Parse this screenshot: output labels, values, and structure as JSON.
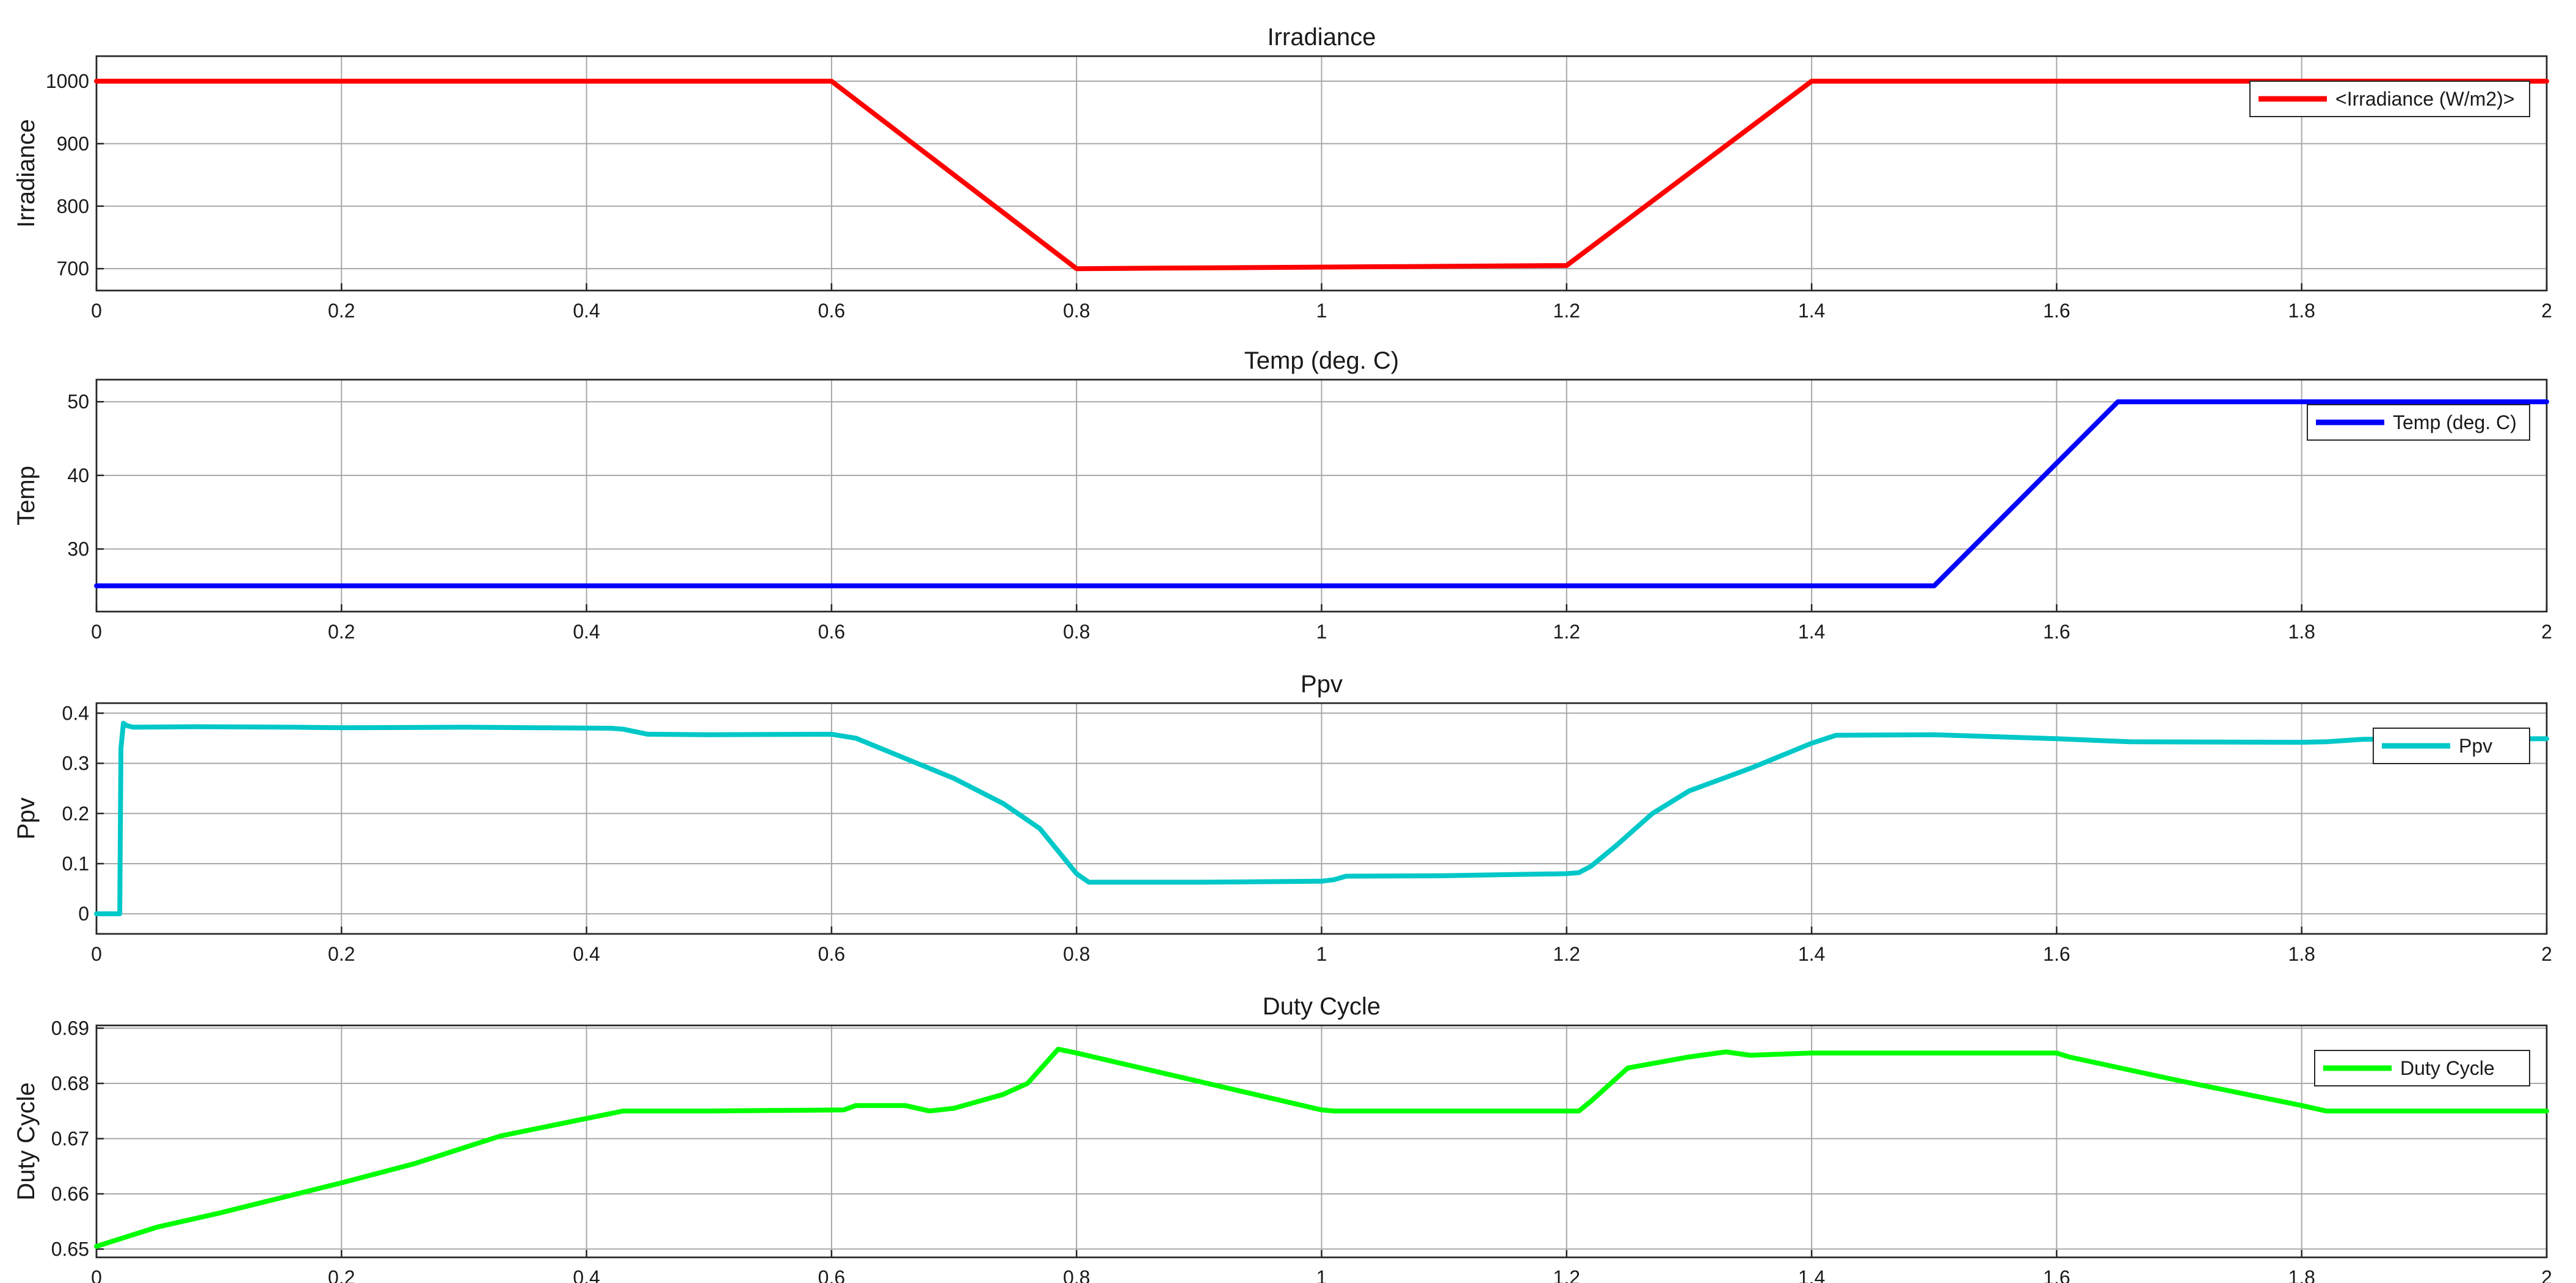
{
  "chart_data": [
    {
      "type": "line",
      "title": "Irradiance",
      "xlabel": "",
      "ylabel": "Irradiance",
      "xlim": [
        0,
        2
      ],
      "ylim": [
        665,
        1040
      ],
      "xticks": [
        0,
        0.2,
        0.4,
        0.6,
        0.8,
        1,
        1.2,
        1.4,
        1.6,
        1.8,
        2
      ],
      "xtick_labels": [
        "0",
        "0.2",
        "0.4",
        "0.6",
        "0.8",
        "1",
        "1.2",
        "1.4",
        "1.6",
        "1.8",
        "2"
      ],
      "yticks": [
        700,
        800,
        900,
        1000
      ],
      "ytick_labels": [
        "700",
        "800",
        "900",
        "1000"
      ],
      "grid": true,
      "legend_position": "top-right",
      "series": [
        {
          "name": "<Irradiance (W/m2)>",
          "color": "#ff0000",
          "x": [
            0,
            0.6,
            0.8,
            1.2,
            1.4,
            2
          ],
          "y": [
            1000,
            1000,
            700,
            705,
            1000,
            1000
          ]
        }
      ]
    },
    {
      "type": "line",
      "title": "Temp (deg. C)",
      "xlabel": "",
      "ylabel": "Temp",
      "xlim": [
        0,
        2
      ],
      "ylim": [
        21.5,
        53
      ],
      "xticks": [
        0,
        0.2,
        0.4,
        0.6,
        0.8,
        1,
        1.2,
        1.4,
        1.6,
        1.8,
        2
      ],
      "xtick_labels": [
        "0",
        "0.2",
        "0.4",
        "0.6",
        "0.8",
        "1",
        "1.2",
        "1.4",
        "1.6",
        "1.8",
        "2"
      ],
      "yticks": [
        30,
        40,
        50
      ],
      "ytick_labels": [
        "30",
        "40",
        "50"
      ],
      "grid": true,
      "legend_position": "top-right",
      "series": [
        {
          "name": "Temp (deg. C)",
          "color": "#0000ff",
          "x": [
            0,
            1.5,
            1.65,
            2
          ],
          "y": [
            25,
            25,
            50,
            50
          ]
        }
      ]
    },
    {
      "type": "line",
      "title": "Ppv",
      "xlabel": "",
      "ylabel": "Ppv",
      "xlim": [
        0,
        2
      ],
      "ylim": [
        -0.04,
        0.42
      ],
      "xticks": [
        0,
        0.2,
        0.4,
        0.6,
        0.8,
        1,
        1.2,
        1.4,
        1.6,
        1.8,
        2
      ],
      "xtick_labels": [
        "0",
        "0.2",
        "0.4",
        "0.6",
        "0.8",
        "1",
        "1.2",
        "1.4",
        "1.6",
        "1.8",
        "2"
      ],
      "yticks": [
        0,
        0.1,
        0.2,
        0.3,
        0.4
      ],
      "ytick_labels": [
        "0",
        "0.1",
        "0.2",
        "0.3",
        "0.4"
      ],
      "grid": true,
      "legend_position": "top-right",
      "series": [
        {
          "name": "Ppv",
          "color": "#00c8c8",
          "x": [
            0,
            0.019,
            0.02,
            0.022,
            0.025,
            0.03,
            0.08,
            0.16,
            0.2,
            0.3,
            0.42,
            0.43,
            0.45,
            0.5,
            0.6,
            0.62,
            0.66,
            0.7,
            0.74,
            0.77,
            0.79,
            0.8,
            0.81,
            0.9,
            1.0,
            1.01,
            1.02,
            1.1,
            1.2,
            1.21,
            1.22,
            1.24,
            1.27,
            1.3,
            1.35,
            1.38,
            1.4,
            1.42,
            1.5,
            1.6,
            1.66,
            1.8,
            1.82,
            1.85,
            2
          ],
          "y": [
            0,
            0,
            0.33,
            0.38,
            0.375,
            0.372,
            0.373,
            0.372,
            0.371,
            0.372,
            0.37,
            0.368,
            0.358,
            0.357,
            0.358,
            0.35,
            0.31,
            0.27,
            0.22,
            0.17,
            0.11,
            0.08,
            0.063,
            0.063,
            0.065,
            0.068,
            0.075,
            0.076,
            0.08,
            0.082,
            0.095,
            0.135,
            0.2,
            0.245,
            0.29,
            0.32,
            0.34,
            0.356,
            0.357,
            0.349,
            0.343,
            0.342,
            0.343,
            0.348,
            0.349
          ]
        }
      ]
    },
    {
      "type": "line",
      "title": "Duty Cycle",
      "xlabel": "",
      "ylabel": "Duty Cycle",
      "xlim": [
        0,
        2
      ],
      "ylim": [
        0.6485,
        0.6905
      ],
      "xticks": [
        0,
        0.2,
        0.4,
        0.6,
        0.8,
        1,
        1.2,
        1.4,
        1.6,
        1.8,
        2
      ],
      "xtick_labels": [
        "0",
        "0.2",
        "0.4",
        "0.6",
        "0.8",
        "1",
        "1.2",
        "1.4",
        "1.6",
        "1.8",
        "2"
      ],
      "yticks": [
        0.65,
        0.66,
        0.67,
        0.68,
        0.69
      ],
      "ytick_labels": [
        "0.65",
        "0.66",
        "0.67",
        "0.68",
        "0.69"
      ],
      "grid": true,
      "legend_position": "top-right",
      "series": [
        {
          "name": "Duty Cycle",
          "color": "#00ff00",
          "x": [
            0,
            0.05,
            0.1,
            0.2,
            0.26,
            0.33,
            0.43,
            0.5,
            0.61,
            0.62,
            0.66,
            0.68,
            0.7,
            0.74,
            0.76,
            0.785,
            0.8,
            1.0,
            1.01,
            1.1,
            1.21,
            1.22,
            1.25,
            1.3,
            1.33,
            1.35,
            1.4,
            1.6,
            1.61,
            1.7,
            1.8,
            1.82,
            1.9,
            2
          ],
          "y": [
            0.6505,
            0.654,
            0.6565,
            0.662,
            0.6655,
            0.6705,
            0.675,
            0.675,
            0.6752,
            0.676,
            0.676,
            0.675,
            0.6755,
            0.678,
            0.68,
            0.6862,
            0.6855,
            0.6752,
            0.675,
            0.675,
            0.675,
            0.6768,
            0.6828,
            0.6848,
            0.6857,
            0.6851,
            0.6855,
            0.6855,
            0.6848,
            0.6805,
            0.676,
            0.675,
            0.675,
            0.675
          ]
        }
      ]
    }
  ]
}
